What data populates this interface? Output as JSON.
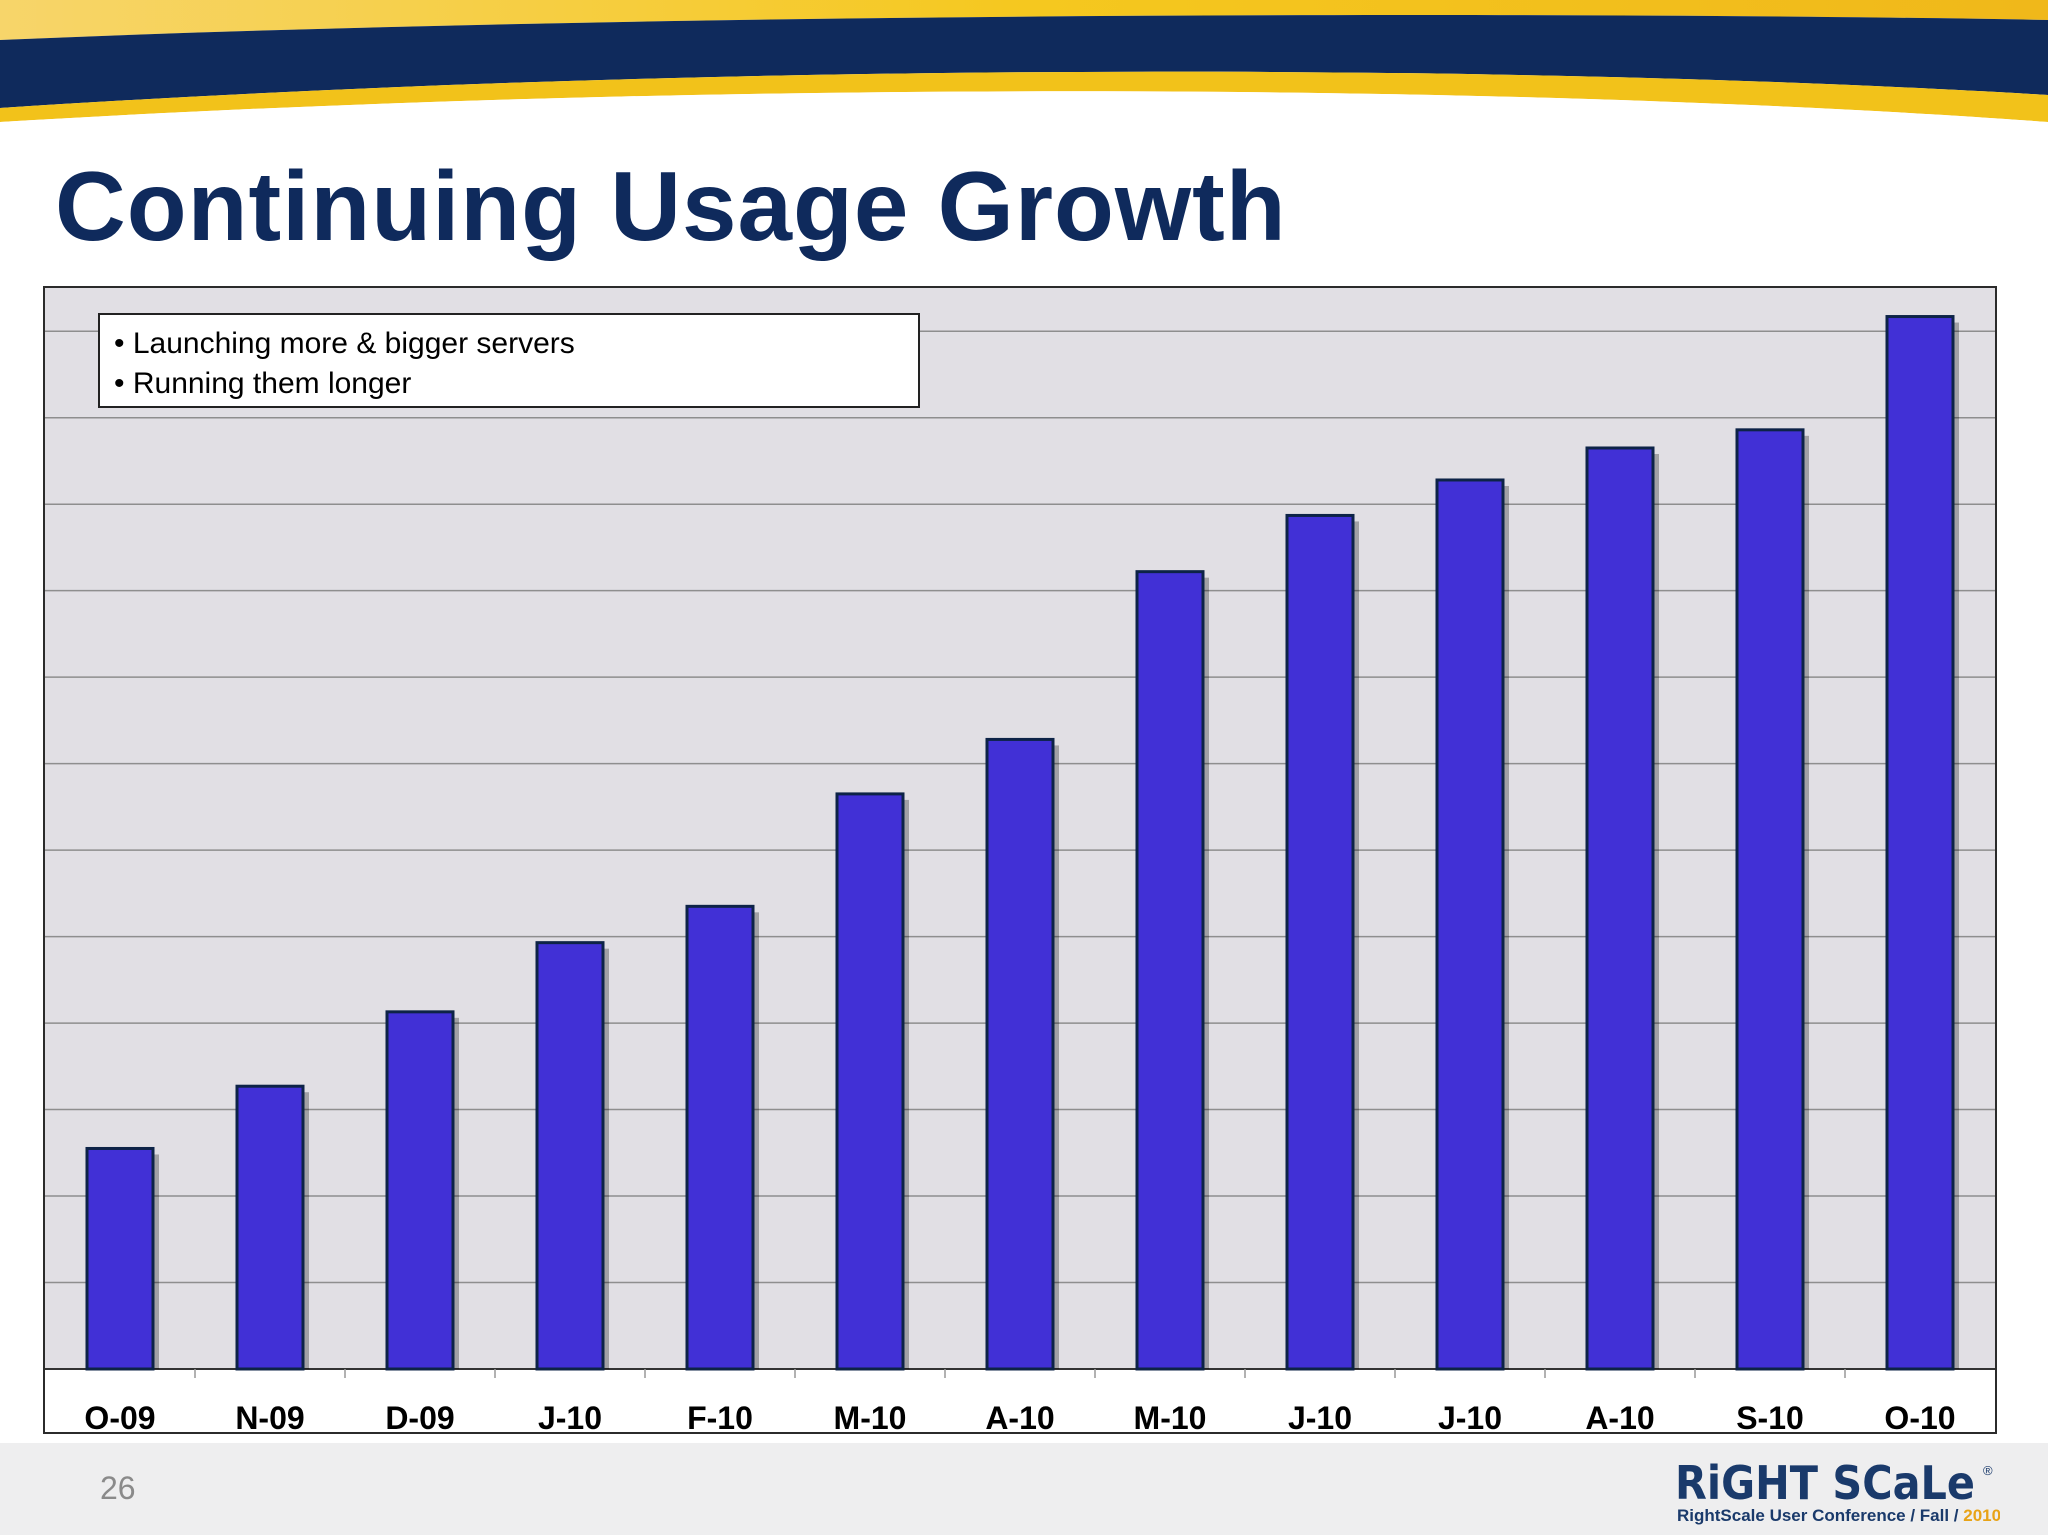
{
  "slide": {
    "title": "Continuing Usage Growth",
    "page_number": "26",
    "notes": [
      "• Launching more & bigger servers",
      "• Running them longer"
    ]
  },
  "branding": {
    "logo_text": "RiGHT SCaLe",
    "registered_mark": "®",
    "tagline_main": "RightScale User Conference / Fall / ",
    "tagline_year": "2010"
  },
  "colors": {
    "title": "#0f2a5c",
    "bar_fill": "#4130d6",
    "bar_stroke": "#0d2347",
    "plot_bg": "#e1dfe4",
    "gridline": "#8e8e8e",
    "banner_navy": "#0f2a5c",
    "banner_gold": "#f2c21a",
    "logo_navy": "#1a3a6b",
    "logo_gold": "#e8a317"
  },
  "chart_data": {
    "type": "bar",
    "title": "",
    "xlabel": "",
    "ylabel": "",
    "categories": [
      "O-09",
      "N-09",
      "D-09",
      "J-10",
      "F-10",
      "M-10",
      "A-10",
      "M-10",
      "J-10",
      "J-10",
      "A-10",
      "S-10",
      "O-10"
    ],
    "values": [
      2.55,
      3.27,
      4.13,
      4.93,
      5.35,
      6.65,
      7.28,
      9.22,
      9.87,
      10.28,
      10.65,
      10.86,
      12.17
    ],
    "ylim": [
      0,
      12.5
    ],
    "grid": true,
    "gridline_count": 12,
    "legend": "none"
  }
}
